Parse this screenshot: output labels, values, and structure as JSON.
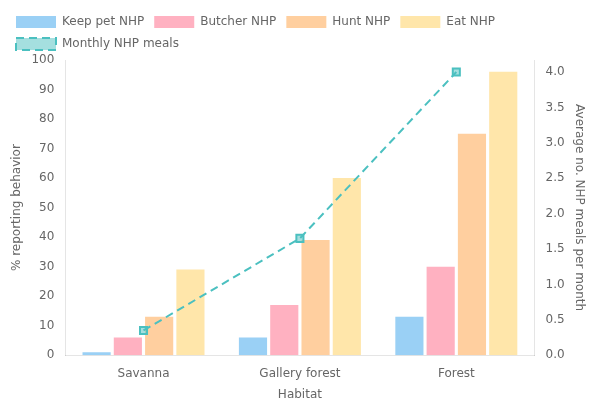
{
  "chart_data": {
    "type": "bar",
    "categories": [
      "Savanna",
      "Gallery forest",
      "Forest"
    ],
    "xlabel": "Habitat",
    "ylabel": "% reporting behavior",
    "y2label": "Average no. NHP meals per month",
    "series": [
      {
        "name": "Keep pet NHP",
        "values": [
          1,
          6,
          13
        ]
      },
      {
        "name": "Butcher NHP",
        "values": [
          6,
          17,
          30
        ]
      },
      {
        "name": "Hunt NHP",
        "values": [
          13,
          39,
          75
        ]
      },
      {
        "name": "Eat NHP",
        "values": [
          29,
          60,
          96
        ]
      },
      {
        "name": "Monthly NHP meals",
        "type": "line",
        "axis": "y2",
        "values": [
          0.35,
          1.65,
          4.0
        ],
        "line_style": "dashed",
        "marker": "square"
      }
    ],
    "ylim": [
      0,
      100
    ],
    "yticks": [
      0,
      10,
      20,
      30,
      40,
      50,
      60,
      70,
      80,
      90,
      100
    ],
    "y2lim": [
      0,
      4.17
    ],
    "y2ticks": [
      {
        "value": 0,
        "label": "0.0"
      },
      {
        "value": 0.5,
        "label": "0.5"
      },
      {
        "value": 1.0,
        "label": "1.0"
      },
      {
        "value": 1.5,
        "label": "1.5"
      },
      {
        "value": 2.0,
        "label": "2.0"
      },
      {
        "value": 2.5,
        "label": "2.5"
      },
      {
        "value": 3.0,
        "label": "3.0"
      },
      {
        "value": 3.5,
        "label": "3.5"
      },
      {
        "value": 4.0,
        "label": "4.0"
      }
    ],
    "grid": false,
    "legend": "upper left"
  }
}
